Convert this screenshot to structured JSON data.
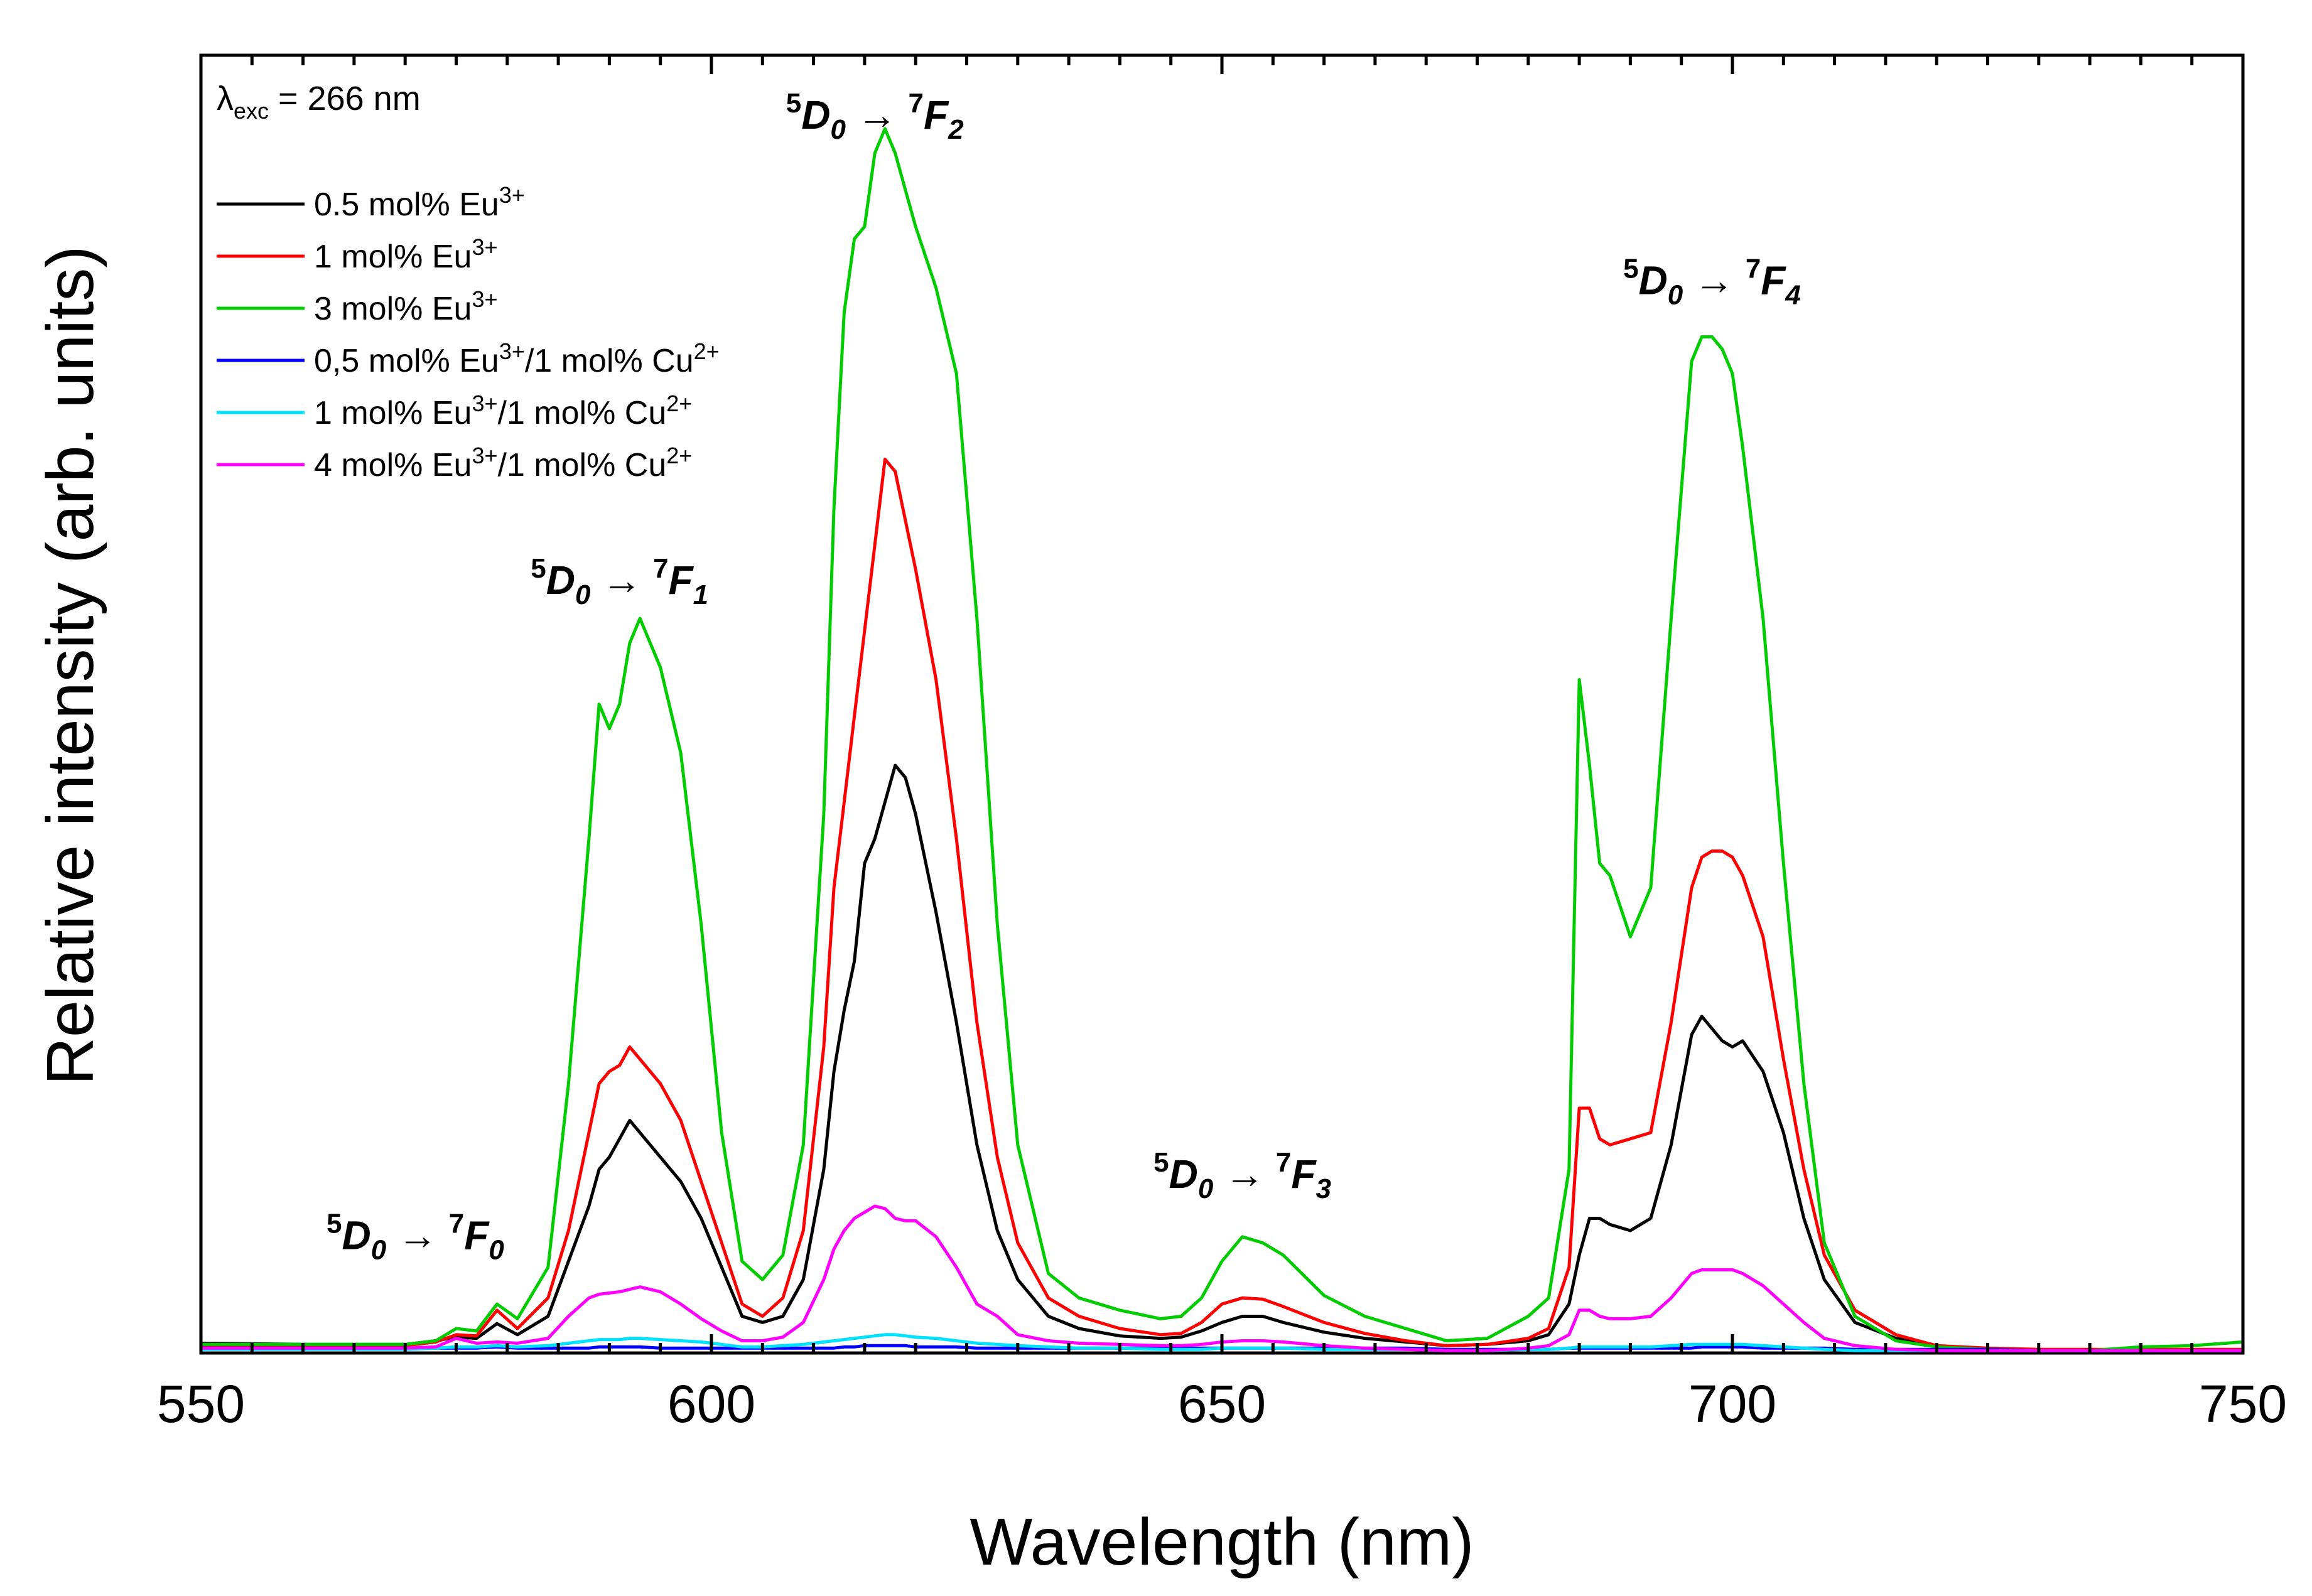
{
  "chart_data": {
    "type": "line",
    "title": "",
    "excitation_label": {
      "lambda": "λ",
      "sub": "exc",
      "rest": " = 266 nm"
    },
    "xlabel": "Wavelength (nm)",
    "ylabel": "Relative intensity (arb. units)",
    "xlim": [
      550,
      750
    ],
    "ylim": [
      0,
      1.06
    ],
    "x_ticks": [
      550,
      600,
      650,
      700,
      750
    ],
    "x_tick_labels": [
      "550",
      "600",
      "650",
      "700",
      "750"
    ],
    "x_minor_step": 5,
    "y_tick_labels": [],
    "grid": false,
    "legend_position": "top-left",
    "annotations": [
      {
        "x": 571,
        "y": 0.085,
        "sup1": "5",
        "main": "D",
        "sub1": "0",
        "arrow": " → ",
        "sup2": "7",
        "main2": "F",
        "sub2": "0"
      },
      {
        "x": 591,
        "y": 0.62,
        "sup1": "5",
        "main": "D",
        "sub1": "0",
        "arrow": " → ",
        "sup2": "7",
        "main2": "F",
        "sub2": "1"
      },
      {
        "x": 616,
        "y": 1.0,
        "sup1": "5",
        "main": "D",
        "sub1": "0",
        "arrow": " → ",
        "sup2": "7",
        "main2": "F",
        "sub2": "2"
      },
      {
        "x": 652,
        "y": 0.135,
        "sup1": "5",
        "main": "D",
        "sub1": "0",
        "arrow": " → ",
        "sup2": "7",
        "main2": "F",
        "sub2": "3"
      },
      {
        "x": 698,
        "y": 0.865,
        "sup1": "5",
        "main": "D",
        "sub1": "0",
        "arrow": " → ",
        "sup2": "7",
        "main2": "F",
        "sub2": "4"
      }
    ],
    "x": [
      550,
      560,
      570,
      573,
      575,
      577,
      579,
      581,
      584,
      586,
      588,
      589,
      590,
      591,
      592,
      593,
      595,
      597,
      599,
      601,
      603,
      605,
      607,
      609,
      611,
      612,
      613,
      614,
      615,
      616,
      617,
      618,
      619,
      620,
      622,
      624,
      626,
      628,
      630,
      633,
      636,
      640,
      644,
      646,
      648,
      650,
      652,
      654,
      656,
      660,
      664,
      668,
      672,
      676,
      680,
      682,
      684,
      685,
      686,
      687,
      688,
      690,
      692,
      694,
      696,
      697,
      698,
      699,
      700,
      701,
      703,
      705,
      707,
      709,
      712,
      716,
      720,
      725,
      730,
      735,
      740,
      745,
      750
    ],
    "series": [
      {
        "name": "0.5 mol% Eu3+",
        "label_main": "0.5 mol% Eu",
        "label_sup": "3+",
        "label_tail": "",
        "label_sup2": "",
        "color": "#000000",
        "values": [
          0.008,
          0.007,
          0.007,
          0.01,
          0.013,
          0.012,
          0.024,
          0.015,
          0.03,
          0.075,
          0.12,
          0.15,
          0.16,
          0.175,
          0.19,
          0.18,
          0.16,
          0.14,
          0.11,
          0.07,
          0.03,
          0.025,
          0.03,
          0.06,
          0.15,
          0.23,
          0.28,
          0.32,
          0.4,
          0.42,
          0.45,
          0.48,
          0.47,
          0.44,
          0.36,
          0.27,
          0.17,
          0.1,
          0.06,
          0.03,
          0.02,
          0.014,
          0.012,
          0.013,
          0.018,
          0.025,
          0.03,
          0.03,
          0.025,
          0.017,
          0.012,
          0.009,
          0.006,
          0.007,
          0.01,
          0.015,
          0.04,
          0.08,
          0.11,
          0.11,
          0.105,
          0.1,
          0.11,
          0.17,
          0.26,
          0.275,
          0.265,
          0.255,
          0.25,
          0.255,
          0.23,
          0.18,
          0.11,
          0.06,
          0.025,
          0.012,
          0.006,
          0.003,
          0.002,
          0.002,
          0.002,
          0.002,
          0.002
        ]
      },
      {
        "name": "1 mol% Eu3+",
        "label_main": "1 mol% Eu",
        "label_sup": "3+",
        "label_tail": "",
        "label_sup2": "",
        "color": "#ff0000",
        "values": [
          0.006,
          0.006,
          0.006,
          0.009,
          0.015,
          0.014,
          0.035,
          0.02,
          0.045,
          0.1,
          0.18,
          0.22,
          0.23,
          0.235,
          0.25,
          0.24,
          0.22,
          0.19,
          0.14,
          0.09,
          0.04,
          0.03,
          0.045,
          0.1,
          0.25,
          0.38,
          0.45,
          0.52,
          0.59,
          0.66,
          0.73,
          0.72,
          0.68,
          0.64,
          0.55,
          0.42,
          0.27,
          0.16,
          0.09,
          0.045,
          0.03,
          0.02,
          0.015,
          0.016,
          0.025,
          0.04,
          0.045,
          0.044,
          0.038,
          0.025,
          0.016,
          0.01,
          0.006,
          0.007,
          0.012,
          0.02,
          0.07,
          0.2,
          0.2,
          0.175,
          0.17,
          0.175,
          0.18,
          0.27,
          0.38,
          0.405,
          0.41,
          0.41,
          0.405,
          0.39,
          0.34,
          0.24,
          0.15,
          0.08,
          0.035,
          0.015,
          0.006,
          0.004,
          0.003,
          0.003,
          0.003,
          0.003,
          0.003
        ]
      },
      {
        "name": "3 mol% Eu3+",
        "label_main": "3 mol% Eu",
        "label_sup": "3+",
        "label_tail": "",
        "label_sup2": "",
        "color": "#00cc00",
        "values": [
          0.007,
          0.007,
          0.007,
          0.01,
          0.02,
          0.018,
          0.04,
          0.028,
          0.07,
          0.22,
          0.42,
          0.53,
          0.51,
          0.53,
          0.58,
          0.6,
          0.56,
          0.49,
          0.35,
          0.18,
          0.075,
          0.06,
          0.08,
          0.17,
          0.44,
          0.69,
          0.85,
          0.91,
          0.92,
          0.98,
          1.0,
          0.98,
          0.95,
          0.92,
          0.87,
          0.8,
          0.6,
          0.35,
          0.17,
          0.065,
          0.045,
          0.035,
          0.028,
          0.03,
          0.045,
          0.075,
          0.095,
          0.09,
          0.08,
          0.047,
          0.03,
          0.02,
          0.01,
          0.012,
          0.03,
          0.045,
          0.15,
          0.55,
          0.48,
          0.4,
          0.39,
          0.34,
          0.38,
          0.6,
          0.81,
          0.83,
          0.83,
          0.82,
          0.8,
          0.74,
          0.6,
          0.4,
          0.22,
          0.09,
          0.03,
          0.01,
          0.005,
          0.003,
          0.002,
          0.002,
          0.005,
          0.006,
          0.009
        ]
      },
      {
        "name": "0,5 mol% Eu3+/1 mol% Cu2+",
        "label_main": "0,5 mol% Eu",
        "label_sup": "3+",
        "label_tail": "/1 mol% Cu",
        "label_sup2": "2+",
        "color": "#0000ff",
        "values": [
          0.004,
          0.004,
          0.004,
          0.004,
          0.004,
          0.004,
          0.005,
          0.004,
          0.004,
          0.004,
          0.004,
          0.005,
          0.005,
          0.005,
          0.005,
          0.005,
          0.004,
          0.004,
          0.004,
          0.004,
          0.004,
          0.004,
          0.004,
          0.004,
          0.004,
          0.004,
          0.005,
          0.005,
          0.006,
          0.006,
          0.006,
          0.006,
          0.006,
          0.005,
          0.005,
          0.005,
          0.004,
          0.004,
          0.004,
          0.004,
          0.004,
          0.004,
          0.004,
          0.004,
          0.004,
          0.004,
          0.004,
          0.004,
          0.004,
          0.004,
          0.004,
          0.004,
          0.003,
          0.003,
          0.003,
          0.003,
          0.004,
          0.004,
          0.004,
          0.004,
          0.004,
          0.004,
          0.004,
          0.004,
          0.004,
          0.005,
          0.005,
          0.005,
          0.005,
          0.005,
          0.004,
          0.004,
          0.004,
          0.004,
          0.003,
          0.003,
          0.003,
          0.003,
          0.002,
          0.002,
          0.002,
          0.002,
          0.002
        ]
      },
      {
        "name": "1 mol% Eu3+/1 mol% Cu2+",
        "label_main": "1 mol% Eu",
        "label_sup": "3+",
        "label_tail": "/1 mol% Cu",
        "label_sup2": "2+",
        "color": "#00e0ff",
        "values": [
          0.003,
          0.003,
          0.003,
          0.004,
          0.005,
          0.005,
          0.006,
          0.005,
          0.006,
          0.008,
          0.01,
          0.011,
          0.011,
          0.011,
          0.012,
          0.012,
          0.011,
          0.01,
          0.009,
          0.007,
          0.005,
          0.005,
          0.006,
          0.007,
          0.009,
          0.01,
          0.011,
          0.012,
          0.013,
          0.014,
          0.015,
          0.015,
          0.014,
          0.013,
          0.012,
          0.01,
          0.008,
          0.007,
          0.006,
          0.005,
          0.004,
          0.004,
          0.003,
          0.003,
          0.003,
          0.004,
          0.004,
          0.004,
          0.004,
          0.003,
          0.003,
          0.003,
          0.002,
          0.002,
          0.003,
          0.003,
          0.004,
          0.005,
          0.005,
          0.005,
          0.005,
          0.005,
          0.005,
          0.006,
          0.007,
          0.007,
          0.007,
          0.007,
          0.007,
          0.007,
          0.006,
          0.005,
          0.004,
          0.003,
          0.002,
          0.002,
          0.002,
          0.002,
          0.002,
          0.002,
          0.002,
          0.002,
          0.002
        ]
      },
      {
        "name": "4 mol% Eu3+/1 mol% Cu2+",
        "label_main": "4 mol% Eu",
        "label_sup": "3+",
        "label_tail": "/1 mol% Cu",
        "label_sup2": "2+",
        "color": "#ff00ff",
        "values": [
          0.004,
          0.004,
          0.004,
          0.005,
          0.012,
          0.008,
          0.009,
          0.008,
          0.012,
          0.03,
          0.045,
          0.048,
          0.049,
          0.05,
          0.052,
          0.054,
          0.05,
          0.04,
          0.028,
          0.018,
          0.01,
          0.01,
          0.013,
          0.025,
          0.06,
          0.085,
          0.1,
          0.11,
          0.115,
          0.12,
          0.118,
          0.11,
          0.108,
          0.108,
          0.095,
          0.07,
          0.04,
          0.03,
          0.015,
          0.01,
          0.008,
          0.007,
          0.006,
          0.006,
          0.007,
          0.009,
          0.01,
          0.01,
          0.009,
          0.006,
          0.004,
          0.003,
          0.002,
          0.002,
          0.004,
          0.006,
          0.015,
          0.035,
          0.035,
          0.03,
          0.028,
          0.028,
          0.03,
          0.045,
          0.065,
          0.068,
          0.068,
          0.068,
          0.068,
          0.065,
          0.055,
          0.04,
          0.025,
          0.012,
          0.006,
          0.003,
          0.002,
          0.002,
          0.002,
          0.002,
          0.002,
          0.002,
          0.002
        ]
      }
    ]
  }
}
